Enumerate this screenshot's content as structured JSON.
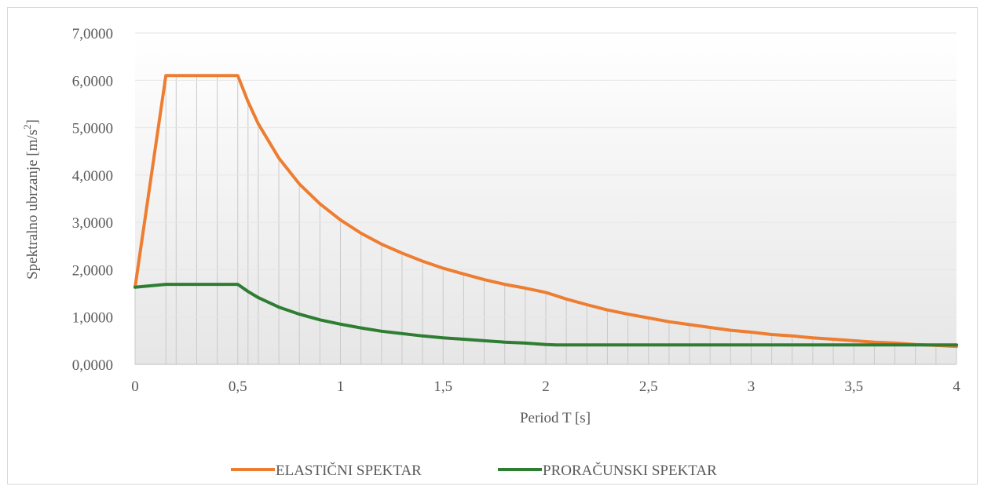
{
  "chart_data": {
    "type": "line",
    "title": "",
    "xlabel": "Period T [s]",
    "ylabel_parts": [
      "Spektralno ubrzanje [m/s",
      "2",
      "]"
    ],
    "xlim": [
      0,
      4
    ],
    "ylim": [
      0,
      7
    ],
    "x_ticks": [
      0,
      0.5,
      1,
      1.5,
      2,
      2.5,
      3,
      3.5,
      4
    ],
    "x_tick_labels": [
      "0",
      "0,5",
      "1",
      "1,5",
      "2",
      "2,5",
      "3",
      "3,5",
      "4"
    ],
    "y_ticks": [
      0,
      1,
      2,
      3,
      4,
      5,
      6,
      7
    ],
    "y_tick_labels": [
      "0,0000",
      "1,0000",
      "2,0000",
      "3,0000",
      "4,0000",
      "5,0000",
      "6,0000",
      "7,0000"
    ],
    "grid": true,
    "drop_lines": true,
    "legend_position": "bottom",
    "series": [
      {
        "name": "ELASTIČNI SPEKTAR",
        "color": "#ed7d31",
        "points": [
          [
            0,
            1.63
          ],
          [
            0.15,
            6.1
          ],
          [
            0.2,
            6.1
          ],
          [
            0.3,
            6.1
          ],
          [
            0.4,
            6.1
          ],
          [
            0.5,
            6.1
          ],
          [
            0.55,
            5.55
          ],
          [
            0.6,
            5.08
          ],
          [
            0.7,
            4.36
          ],
          [
            0.8,
            3.81
          ],
          [
            0.9,
            3.39
          ],
          [
            1.0,
            3.05
          ],
          [
            1.1,
            2.77
          ],
          [
            1.2,
            2.54
          ],
          [
            1.3,
            2.35
          ],
          [
            1.4,
            2.18
          ],
          [
            1.5,
            2.03
          ],
          [
            1.6,
            1.91
          ],
          [
            1.7,
            1.79
          ],
          [
            1.8,
            1.69
          ],
          [
            1.9,
            1.61
          ],
          [
            2.0,
            1.52
          ],
          [
            2.1,
            1.38
          ],
          [
            2.2,
            1.26
          ],
          [
            2.3,
            1.15
          ],
          [
            2.4,
            1.06
          ],
          [
            2.5,
            0.98
          ],
          [
            2.6,
            0.9
          ],
          [
            2.7,
            0.84
          ],
          [
            2.8,
            0.78
          ],
          [
            2.9,
            0.72
          ],
          [
            3.0,
            0.68
          ],
          [
            3.1,
            0.63
          ],
          [
            3.2,
            0.6
          ],
          [
            3.3,
            0.56
          ],
          [
            3.4,
            0.53
          ],
          [
            3.5,
            0.5
          ],
          [
            3.6,
            0.47
          ],
          [
            3.7,
            0.45
          ],
          [
            3.8,
            0.42
          ],
          [
            3.9,
            0.4
          ],
          [
            4.0,
            0.38
          ]
        ]
      },
      {
        "name": "PRORAČUNSKI SPEKTAR",
        "color": "#2e7d32",
        "points": [
          [
            0,
            1.63
          ],
          [
            0.15,
            1.69
          ],
          [
            0.2,
            1.69
          ],
          [
            0.3,
            1.69
          ],
          [
            0.4,
            1.69
          ],
          [
            0.5,
            1.69
          ],
          [
            0.55,
            1.54
          ],
          [
            0.6,
            1.41
          ],
          [
            0.7,
            1.21
          ],
          [
            0.8,
            1.06
          ],
          [
            0.9,
            0.94
          ],
          [
            1.0,
            0.85
          ],
          [
            1.1,
            0.77
          ],
          [
            1.2,
            0.7
          ],
          [
            1.3,
            0.65
          ],
          [
            1.4,
            0.6
          ],
          [
            1.5,
            0.56
          ],
          [
            1.6,
            0.53
          ],
          [
            1.7,
            0.5
          ],
          [
            1.8,
            0.47
          ],
          [
            1.9,
            0.45
          ],
          [
            2.0,
            0.42
          ],
          [
            2.05,
            0.41
          ],
          [
            2.5,
            0.41
          ],
          [
            3.0,
            0.41
          ],
          [
            3.5,
            0.41
          ],
          [
            4.0,
            0.41
          ]
        ]
      }
    ]
  }
}
